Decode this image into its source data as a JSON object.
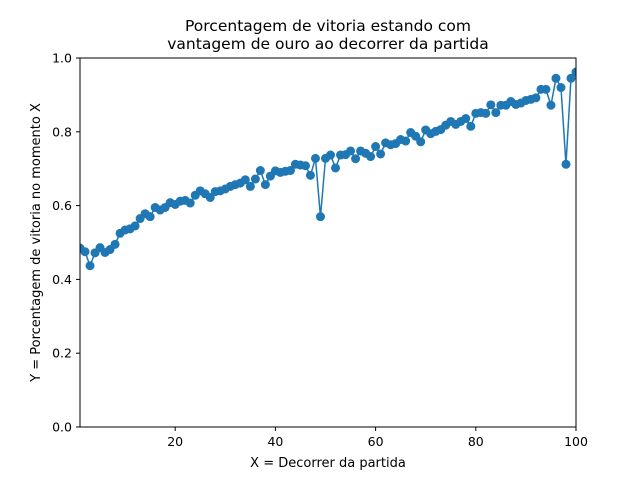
{
  "chart_data": {
    "type": "line",
    "title_lines": [
      "Porcentagem de vitoria estando com",
      "vantagem de ouro ao decorrer da partida"
    ],
    "xlabel": "X = Decorrer da partida",
    "ylabel": "Y = Porcentagem de vitoria no momento X",
    "xlim": [
      1,
      100
    ],
    "ylim": [
      0,
      1.0
    ],
    "xticks": [
      20,
      40,
      60,
      80,
      100
    ],
    "xtick_labels": [
      "20",
      "40",
      "60",
      "80",
      "100"
    ],
    "yticks": [
      0.0,
      0.2,
      0.4,
      0.6,
      0.8,
      1.0
    ],
    "ytick_labels": [
      "0.0",
      "0.2",
      "0.4",
      "0.6",
      "0.8",
      "1.0"
    ],
    "grid": false,
    "color": "#1f77b4",
    "markers": "circle",
    "series": [
      {
        "x": [
          1,
          2,
          3,
          4,
          5,
          6,
          7,
          8,
          9,
          10,
          11,
          12,
          13,
          14,
          15,
          16,
          17,
          18,
          19,
          20,
          21,
          22,
          23,
          24,
          25,
          26,
          27,
          28,
          29,
          30,
          31,
          32,
          33,
          34,
          35,
          36,
          37,
          38,
          39,
          40,
          41,
          42,
          43,
          44,
          45,
          46,
          47,
          48,
          49,
          50,
          51,
          52,
          53,
          54,
          55,
          56,
          57,
          58,
          59,
          60,
          61,
          62,
          63,
          64,
          65,
          66,
          67,
          68,
          69,
          70,
          71,
          72,
          73,
          74,
          75,
          76,
          77,
          78,
          79,
          80,
          81,
          82,
          83,
          84,
          85,
          86,
          87,
          88,
          89,
          90,
          91,
          92,
          93,
          94,
          95,
          96,
          97,
          98,
          99,
          100
        ],
        "values": [
          0.485,
          0.475,
          0.437,
          0.472,
          0.486,
          0.473,
          0.481,
          0.495,
          0.525,
          0.534,
          0.537,
          0.545,
          0.565,
          0.578,
          0.57,
          0.595,
          0.588,
          0.595,
          0.608,
          0.603,
          0.612,
          0.614,
          0.607,
          0.628,
          0.64,
          0.632,
          0.622,
          0.638,
          0.64,
          0.645,
          0.652,
          0.657,
          0.661,
          0.67,
          0.652,
          0.672,
          0.695,
          0.657,
          0.68,
          0.694,
          0.69,
          0.693,
          0.695,
          0.712,
          0.71,
          0.708,
          0.682,
          0.728,
          0.57,
          0.728,
          0.737,
          0.702,
          0.737,
          0.738,
          0.748,
          0.727,
          0.748,
          0.742,
          0.733,
          0.76,
          0.74,
          0.77,
          0.765,
          0.768,
          0.779,
          0.775,
          0.798,
          0.788,
          0.773,
          0.805,
          0.795,
          0.801,
          0.806,
          0.818,
          0.828,
          0.82,
          0.828,
          0.836,
          0.815,
          0.85,
          0.852,
          0.85,
          0.873,
          0.852,
          0.872,
          0.872,
          0.882,
          0.874,
          0.878,
          0.885,
          0.888,
          0.892,
          0.915,
          0.915,
          0.872,
          0.945,
          0.92,
          0.712,
          0.945,
          0.962
        ]
      }
    ]
  }
}
